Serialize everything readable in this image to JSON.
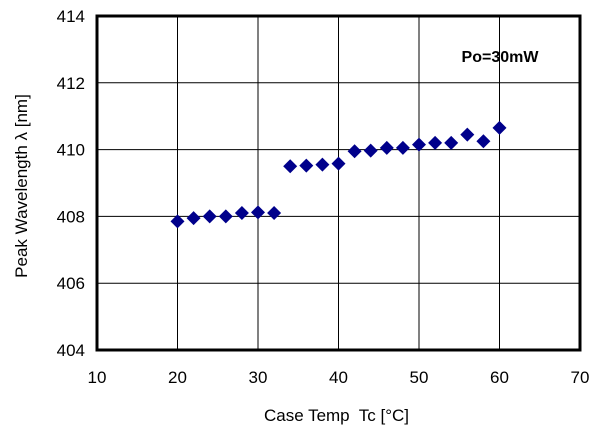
{
  "chart_data": {
    "type": "scatter",
    "title": "",
    "xlabel": "Case Temp  Tc [°C]",
    "ylabel": "Peak Wavelength λ [nm]",
    "xlim": [
      10,
      70
    ],
    "ylim": [
      404,
      414
    ],
    "xticks": [
      10,
      20,
      30,
      40,
      50,
      60,
      70
    ],
    "yticks": [
      404,
      406,
      408,
      410,
      412,
      414
    ],
    "grid": true,
    "legend": "none",
    "annotation": "Po=30mW",
    "marker_color": "#00008B",
    "series": [
      {
        "x": [
          20,
          22,
          24,
          26,
          28,
          30,
          32,
          34,
          36,
          38,
          40,
          42,
          44,
          46,
          48,
          50,
          52,
          54,
          56,
          58,
          60
        ],
        "y": [
          407.85,
          407.95,
          408.0,
          408.0,
          408.1,
          408.12,
          408.1,
          409.5,
          409.52,
          409.55,
          409.58,
          409.95,
          409.97,
          410.05,
          410.05,
          410.15,
          410.2,
          410.2,
          410.45,
          410.25,
          410.65
        ]
      }
    ]
  }
}
